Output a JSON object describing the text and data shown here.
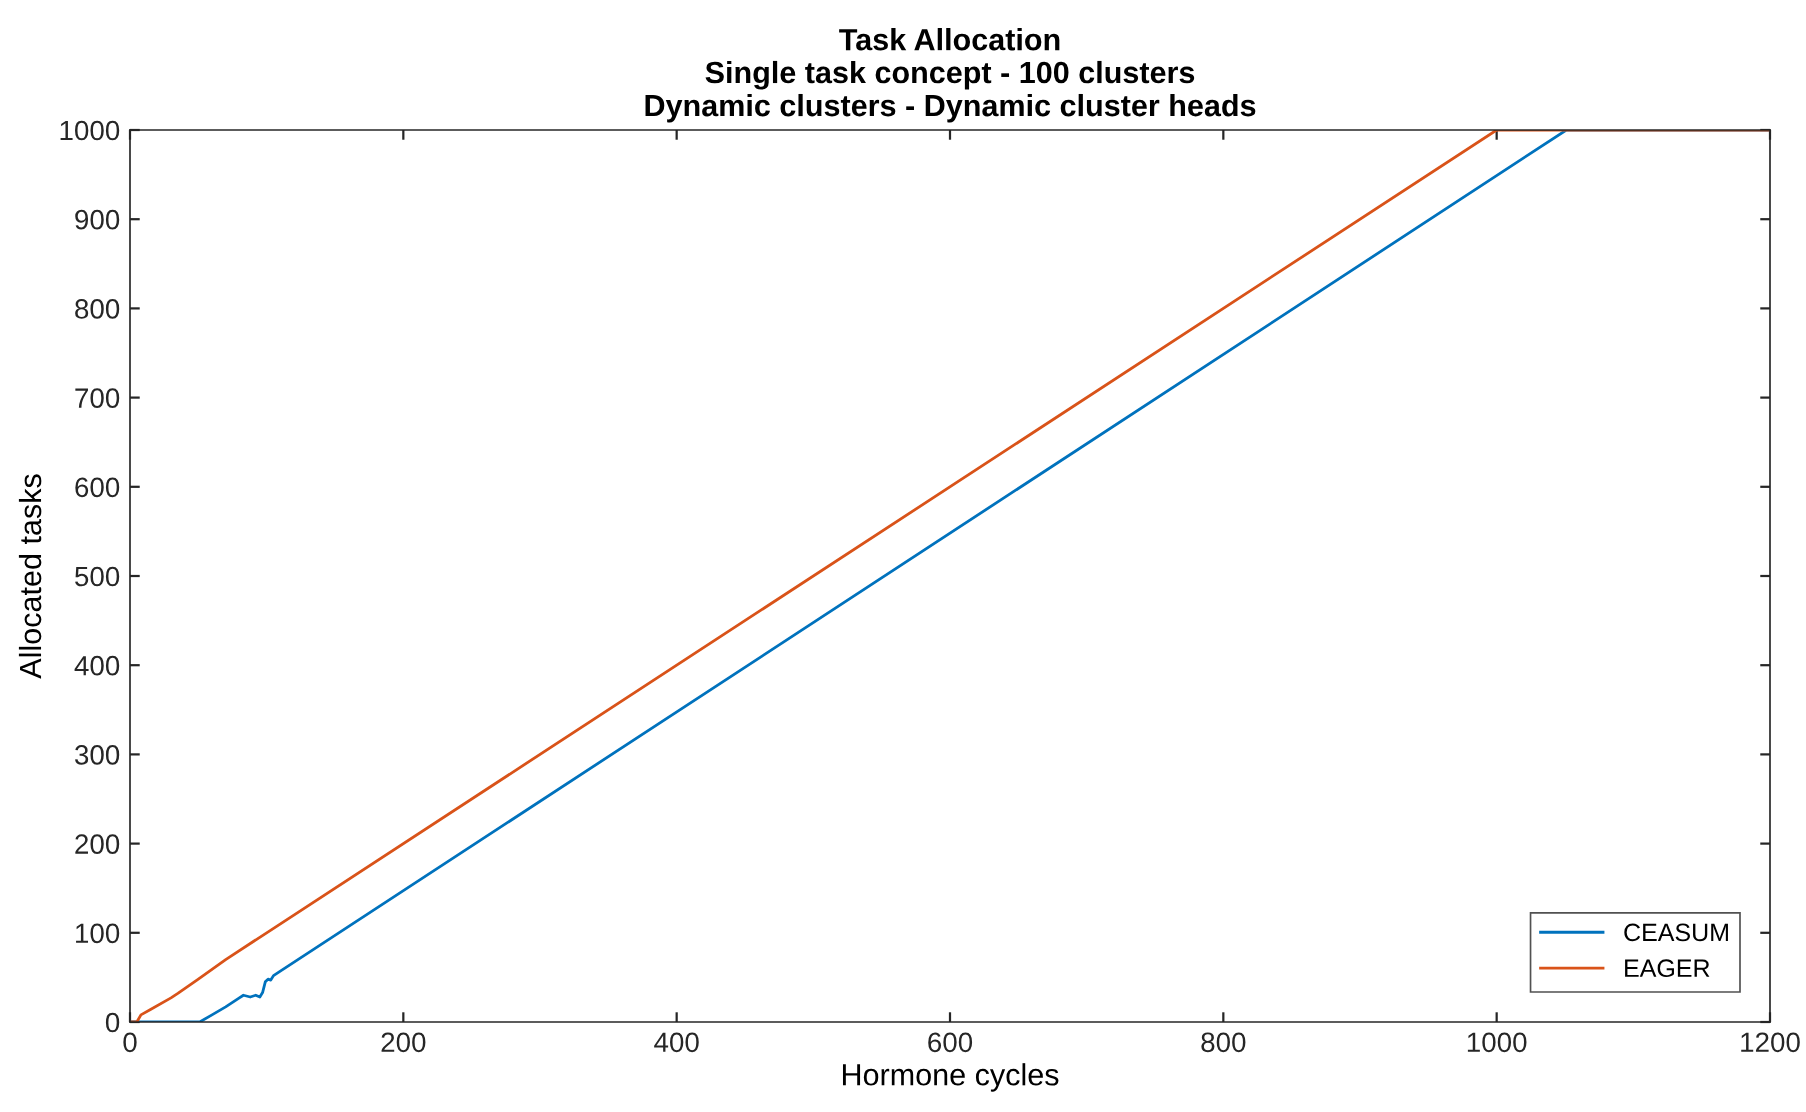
{
  "chart_data": {
    "type": "line",
    "title": "Task Allocation\nSingle task concept - 100 clusters\nDynamic clusters - Dynamic cluster heads",
    "xlabel": "Hormone cycles",
    "ylabel": "Allocated tasks",
    "xlim": [
      0,
      1200
    ],
    "xticks": [
      0,
      200,
      400,
      600,
      800,
      1000,
      1200
    ],
    "ylim": [
      0,
      1000
    ],
    "yticks": [
      0,
      100,
      200,
      300,
      400,
      500,
      600,
      700,
      800,
      900,
      1000
    ],
    "grid": false,
    "legend": "bottom right",
    "series": [
      {
        "name": "CEASUM",
        "color": "#0072bd",
        "x": [
          0,
          51,
          60,
          70,
          80,
          83,
          88,
          92,
          95,
          97,
          99,
          101,
          103,
          105,
          110,
          1051,
          1200
        ],
        "values": [
          0,
          0,
          8,
          17,
          27,
          30,
          28,
          30,
          28,
          33,
          45,
          48,
          47,
          52,
          57,
          1000,
          1000
        ]
      },
      {
        "name": "EAGER",
        "color": "#d95319",
        "x": [
          0,
          5,
          8,
          15,
          30,
          35,
          50,
          70,
          100,
          1000,
          1200
        ],
        "values": [
          0,
          0,
          8,
          14,
          27,
          32,
          48,
          70,
          100,
          1000,
          1000
        ]
      }
    ]
  }
}
